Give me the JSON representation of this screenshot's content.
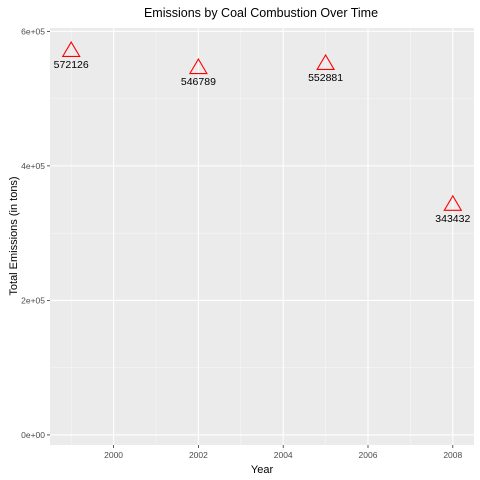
{
  "chart_data": {
    "type": "scatter",
    "title": "Emissions by Coal Combustion Over Time",
    "xlabel": "Year",
    "ylabel": "Total Emissions (in tons)",
    "x": [
      1999,
      2002,
      2005,
      2008
    ],
    "y": [
      572126,
      546789,
      552881,
      343432
    ],
    "point_labels": [
      "572126",
      "546789",
      "552881",
      "343432"
    ],
    "xlim": [
      1998.5,
      2008.5
    ],
    "ylim": [
      -15000,
      605000
    ],
    "x_ticks": [
      2000,
      2002,
      2004,
      2006,
      2008
    ],
    "x_tick_labels": [
      "2000",
      "2002",
      "2004",
      "2006",
      "2008"
    ],
    "y_ticks": [
      0,
      200000,
      400000,
      600000
    ],
    "y_tick_labels": [
      "0e+00",
      "2e+05",
      "4e+05",
      "6e+05"
    ],
    "marker": "open-triangle",
    "marker_color": "#ff0000",
    "panel_color": "#ebebeb",
    "grid": true
  }
}
